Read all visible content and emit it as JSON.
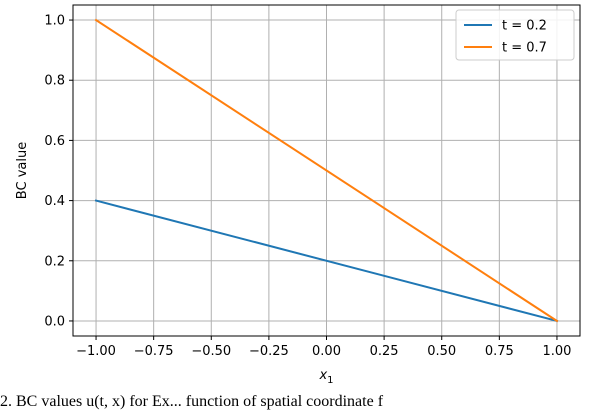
{
  "chart_data": {
    "type": "line",
    "xlabel": "x",
    "xlabel_subscript": "1",
    "ylabel": "BC value",
    "xlim": [
      -1.1,
      1.1
    ],
    "ylim": [
      -0.05,
      1.05
    ],
    "xticks": [
      -1.0,
      -0.75,
      -0.5,
      -0.25,
      0.0,
      0.25,
      0.5,
      0.75,
      1.0
    ],
    "xtick_labels": [
      "−1.00",
      "−0.75",
      "−0.50",
      "−0.25",
      "0.00",
      "0.25",
      "0.50",
      "0.75",
      "1.00"
    ],
    "yticks": [
      0.0,
      0.2,
      0.4,
      0.6,
      0.8,
      1.0
    ],
    "ytick_labels": [
      "0.0",
      "0.2",
      "0.4",
      "0.6",
      "0.8",
      "1.0"
    ],
    "grid": true,
    "legend_position": "top-right",
    "series": [
      {
        "name": "t = 0.2",
        "color": "#1f77b4",
        "x": [
          -1.0,
          1.0
        ],
        "y": [
          0.4,
          0.0
        ]
      },
      {
        "name": "t = 0.7",
        "color": "#ff7f0e",
        "x": [
          -1.0,
          1.0
        ],
        "y": [
          1.0,
          0.0
        ]
      }
    ]
  },
  "caption": "2. BC values u(t, x) for Ex... function of spatial coordinate f"
}
